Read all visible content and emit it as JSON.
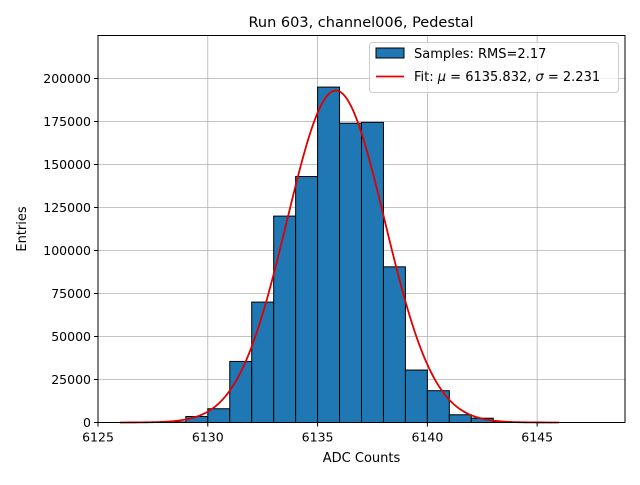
{
  "chart_data": {
    "type": "bar",
    "title": "Run 603, channel006, Pedestal",
    "xlabel": "ADC Counts",
    "ylabel": "Entries",
    "xlim": [
      6125,
      6149
    ],
    "ylim": [
      0,
      225000
    ],
    "grid": true,
    "legend_position": "top-right",
    "xticks": [
      {
        "value": 6125,
        "label": "6125"
      },
      {
        "value": 6130,
        "label": "6130"
      },
      {
        "value": 6135,
        "label": "6135"
      },
      {
        "value": 6140,
        "label": "6140"
      },
      {
        "value": 6145,
        "label": "6145"
      }
    ],
    "yticks": [
      {
        "value": 0,
        "label": "0"
      },
      {
        "value": 25000,
        "label": "25000"
      },
      {
        "value": 50000,
        "label": "50000"
      },
      {
        "value": 75000,
        "label": "75000"
      },
      {
        "value": 100000,
        "label": "100000"
      },
      {
        "value": 125000,
        "label": "125000"
      },
      {
        "value": 150000,
        "label": "150000"
      },
      {
        "value": 175000,
        "label": "175000"
      },
      {
        "value": 200000,
        "label": "200000"
      }
    ],
    "histogram": {
      "name": "Samples: RMS=2.17",
      "color": "#1f77b4",
      "edge_color": "#000000",
      "bins": [
        {
          "left": 6128,
          "right": 6129,
          "value": 300
        },
        {
          "left": 6129,
          "right": 6130,
          "value": 3500
        },
        {
          "left": 6130,
          "right": 6131,
          "value": 8000
        },
        {
          "left": 6131,
          "right": 6132,
          "value": 35500
        },
        {
          "left": 6132,
          "right": 6133,
          "value": 70000
        },
        {
          "left": 6133,
          "right": 6134,
          "value": 120000
        },
        {
          "left": 6134,
          "right": 6135,
          "value": 143000
        },
        {
          "left": 6135,
          "right": 6136,
          "value": 195000
        },
        {
          "left": 6136,
          "right": 6137,
          "value": 174000
        },
        {
          "left": 6137,
          "right": 6138,
          "value": 174500
        },
        {
          "left": 6138,
          "right": 6139,
          "value": 90500
        },
        {
          "left": 6139,
          "right": 6140,
          "value": 30500
        },
        {
          "left": 6140,
          "right": 6141,
          "value": 18500
        },
        {
          "left": 6141,
          "right": 6142,
          "value": 4500
        },
        {
          "left": 6142,
          "right": 6143,
          "value": 2500
        },
        {
          "left": 6143,
          "right": 6144,
          "value": 300
        }
      ]
    },
    "fit": {
      "name": "Fit: μ = 6135.832, σ = 2.231",
      "name_prefix": "Fit: ",
      "mu_symbol": "μ",
      "mu_text": " = 6135.832, ",
      "sigma_symbol": "σ",
      "sigma_text": " = 2.231",
      "color": "#e00000",
      "function": "gaussian",
      "mu": 6135.832,
      "sigma": 2.231,
      "amplitude": 193000,
      "x_range": [
        6126,
        6146
      ]
    }
  }
}
